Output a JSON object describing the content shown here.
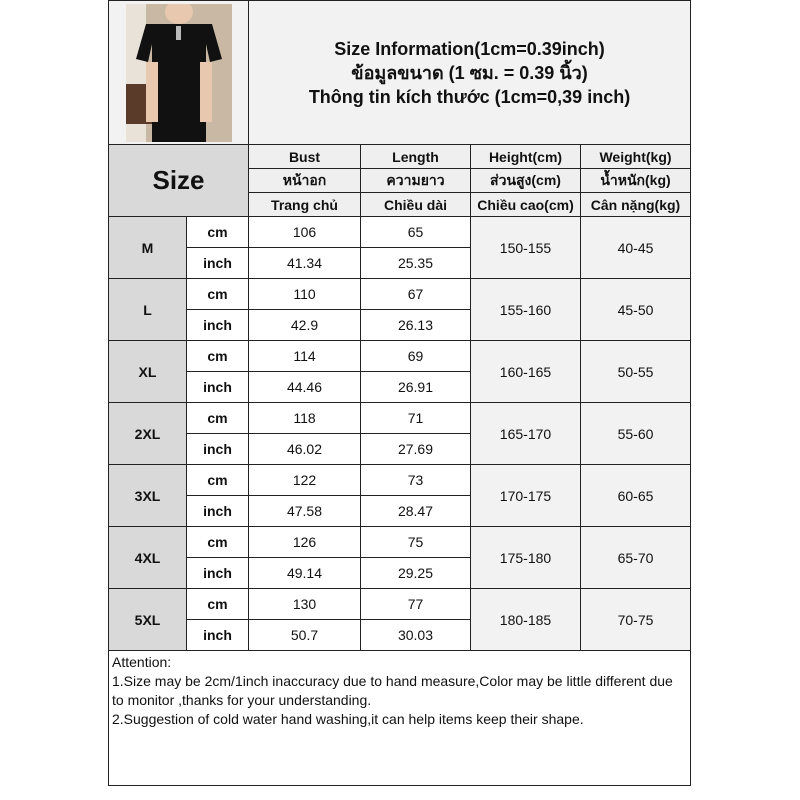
{
  "title_lines": [
    "Size Information(1cm=0.39inch)",
    "ข้อมูลขนาด (1 ซม. = 0.39 นิ้ว)",
    "Thông tin kích thước (1cm=0,39 inch)"
  ],
  "size_header": "Size",
  "columns": [
    [
      "Bust",
      "หน้าอก",
      "Trang chủ"
    ],
    [
      "Length",
      "ความยาว",
      "Chiều dài"
    ],
    [
      "Height(cm)",
      "ส่วนสูง(cm)",
      "Chiều cao(cm)"
    ],
    [
      "Weight(kg)",
      "น้ำหนัก(kg)",
      "Cân nặng(kg)"
    ]
  ],
  "units": [
    "cm",
    "inch"
  ],
  "rows": [
    {
      "size": "M",
      "cm": [
        "106",
        "65"
      ],
      "inch": [
        "41.34",
        "25.35"
      ],
      "height": "150-155",
      "weight": "40-45"
    },
    {
      "size": "L",
      "cm": [
        "110",
        "67"
      ],
      "inch": [
        "42.9",
        "26.13"
      ],
      "height": "155-160",
      "weight": "45-50"
    },
    {
      "size": "XL",
      "cm": [
        "114",
        "69"
      ],
      "inch": [
        "44.46",
        "26.91"
      ],
      "height": "160-165",
      "weight": "50-55"
    },
    {
      "size": "2XL",
      "cm": [
        "118",
        "71"
      ],
      "inch": [
        "46.02",
        "27.69"
      ],
      "height": "165-170",
      "weight": "55-60"
    },
    {
      "size": "3XL",
      "cm": [
        "122",
        "73"
      ],
      "inch": [
        "47.58",
        "28.47"
      ],
      "height": "170-175",
      "weight": "60-65"
    },
    {
      "size": "4XL",
      "cm": [
        "126",
        "75"
      ],
      "inch": [
        "49.14",
        "29.25"
      ],
      "height": "175-180",
      "weight": "65-70"
    },
    {
      "size": "5XL",
      "cm": [
        "130",
        "77"
      ],
      "inch": [
        "50.7",
        "30.03"
      ],
      "height": "180-185",
      "weight": "70-75"
    }
  ],
  "attention": {
    "heading": "Attention:",
    "notes": [
      "1.Size may be 2cm/1inch inaccuracy due to hand measure,Color may be little different due to monitor ,thanks for your understanding.",
      "2.Suggestion of cold water hand washing,it can help items keep their shape."
    ]
  }
}
